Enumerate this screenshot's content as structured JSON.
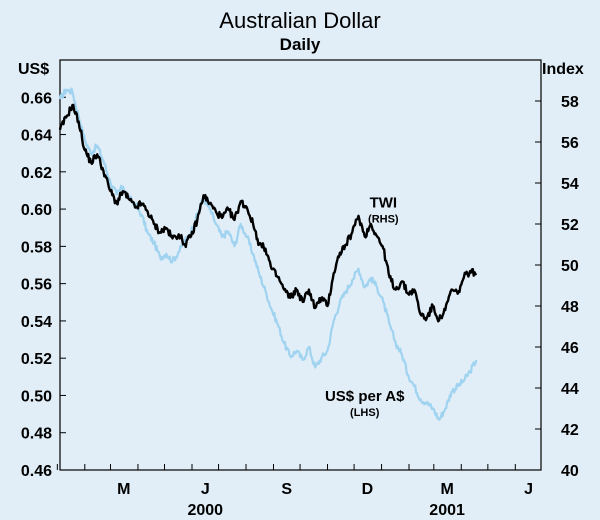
{
  "chart_data": {
    "type": "line",
    "title": "Australian Dollar",
    "subtitle": "Daily",
    "left_axis": {
      "unit": "US$",
      "min": 0.46,
      "max": 0.68,
      "ticks": [
        "0.46",
        "0.48",
        "0.50",
        "0.52",
        "0.54",
        "0.56",
        "0.58",
        "0.60",
        "0.62",
        "0.64",
        "0.66"
      ]
    },
    "right_axis": {
      "unit": "Index",
      "min": 40,
      "max": 60,
      "ticks": [
        "40",
        "42",
        "44",
        "46",
        "48",
        "50",
        "52",
        "54",
        "56",
        "58"
      ]
    },
    "x_axis": {
      "month_labels": [
        "M",
        "J",
        "S",
        "D",
        "M",
        "J"
      ],
      "year_labels": [
        "2000",
        "2001"
      ]
    },
    "x_domain": [
      "2000-01-04",
      "2001-06-30"
    ],
    "grid": false,
    "legend": "inline labels",
    "series": [
      {
        "name": "TWI",
        "name_sub": "(RHS)",
        "axis": "right",
        "color": "#000000",
        "points": [
          [
            "2000-01-04",
            56.6
          ],
          [
            "2000-01-11",
            57.2
          ],
          [
            "2000-01-18",
            57.8
          ],
          [
            "2000-01-25",
            57.0
          ],
          [
            "2000-02-01",
            55.6
          ],
          [
            "2000-02-08",
            55.0
          ],
          [
            "2000-02-15",
            55.4
          ],
          [
            "2000-02-22",
            54.6
          ],
          [
            "2000-03-01",
            53.6
          ],
          [
            "2000-03-08",
            53.0
          ],
          [
            "2000-03-15",
            53.6
          ],
          [
            "2000-03-22",
            53.2
          ],
          [
            "2000-03-29",
            52.8
          ],
          [
            "2000-04-05",
            53.0
          ],
          [
            "2000-04-12",
            52.6
          ],
          [
            "2000-04-19",
            52.0
          ],
          [
            "2000-04-26",
            51.6
          ],
          [
            "2000-05-03",
            51.8
          ],
          [
            "2000-05-10",
            51.3
          ],
          [
            "2000-05-17",
            51.5
          ],
          [
            "2000-05-24",
            51.0
          ],
          [
            "2000-05-31",
            51.4
          ],
          [
            "2000-06-07",
            52.2
          ],
          [
            "2000-06-14",
            53.4
          ],
          [
            "2000-06-21",
            53.0
          ],
          [
            "2000-06-28",
            52.6
          ],
          [
            "2000-07-05",
            52.3
          ],
          [
            "2000-07-12",
            52.7
          ],
          [
            "2000-07-19",
            52.2
          ],
          [
            "2000-07-26",
            53.1
          ],
          [
            "2000-08-02",
            52.8
          ],
          [
            "2000-08-09",
            52.0
          ],
          [
            "2000-08-16",
            51.0
          ],
          [
            "2000-08-23",
            50.8
          ],
          [
            "2000-08-30",
            49.8
          ],
          [
            "2000-09-06",
            49.4
          ],
          [
            "2000-09-13",
            48.8
          ],
          [
            "2000-09-20",
            48.4
          ],
          [
            "2000-09-27",
            48.8
          ],
          [
            "2000-10-04",
            48.2
          ],
          [
            "2000-10-11",
            48.8
          ],
          [
            "2000-10-18",
            47.9
          ],
          [
            "2000-10-25",
            48.4
          ],
          [
            "2000-11-01",
            48.0
          ],
          [
            "2000-11-08",
            49.6
          ],
          [
            "2000-11-15",
            50.6
          ],
          [
            "2000-11-22",
            51.0
          ],
          [
            "2000-11-29",
            51.6
          ],
          [
            "2000-12-06",
            52.4
          ],
          [
            "2000-12-13",
            51.4
          ],
          [
            "2000-12-20",
            52.0
          ],
          [
            "2000-12-27",
            51.4
          ],
          [
            "2001-01-03",
            50.8
          ],
          [
            "2001-01-10",
            49.4
          ],
          [
            "2001-01-17",
            48.8
          ],
          [
            "2001-01-24",
            49.2
          ],
          [
            "2001-01-31",
            48.6
          ],
          [
            "2001-02-07",
            48.8
          ],
          [
            "2001-02-14",
            47.6
          ],
          [
            "2001-02-21",
            47.4
          ],
          [
            "2001-02-28",
            48.0
          ],
          [
            "2001-03-07",
            47.3
          ],
          [
            "2001-03-14",
            47.8
          ],
          [
            "2001-03-21",
            48.8
          ],
          [
            "2001-03-28",
            48.6
          ],
          [
            "2001-04-04",
            49.4
          ],
          [
            "2001-04-11",
            49.7
          ],
          [
            "2001-04-18",
            49.6
          ]
        ]
      },
      {
        "name": "US$ per A$",
        "name_sub": "(LHS)",
        "axis": "left",
        "color": "#9fd3f0",
        "points": [
          [
            "2000-01-04",
            0.659
          ],
          [
            "2000-01-11",
            0.664
          ],
          [
            "2000-01-18",
            0.663
          ],
          [
            "2000-01-25",
            0.65
          ],
          [
            "2000-02-01",
            0.637
          ],
          [
            "2000-02-08",
            0.63
          ],
          [
            "2000-02-15",
            0.634
          ],
          [
            "2000-02-22",
            0.626
          ],
          [
            "2000-03-01",
            0.614
          ],
          [
            "2000-03-08",
            0.608
          ],
          [
            "2000-03-15",
            0.612
          ],
          [
            "2000-03-22",
            0.606
          ],
          [
            "2000-03-29",
            0.602
          ],
          [
            "2000-04-05",
            0.597
          ],
          [
            "2000-04-12",
            0.587
          ],
          [
            "2000-04-19",
            0.582
          ],
          [
            "2000-04-26",
            0.574
          ],
          [
            "2000-05-03",
            0.576
          ],
          [
            "2000-05-10",
            0.572
          ],
          [
            "2000-05-17",
            0.577
          ],
          [
            "2000-05-24",
            0.583
          ],
          [
            "2000-05-31",
            0.588
          ],
          [
            "2000-06-07",
            0.597
          ],
          [
            "2000-06-14",
            0.606
          ],
          [
            "2000-06-21",
            0.6
          ],
          [
            "2000-06-28",
            0.592
          ],
          [
            "2000-07-05",
            0.585
          ],
          [
            "2000-07-12",
            0.588
          ],
          [
            "2000-07-19",
            0.58
          ],
          [
            "2000-07-26",
            0.592
          ],
          [
            "2000-08-02",
            0.585
          ],
          [
            "2000-08-09",
            0.576
          ],
          [
            "2000-08-16",
            0.565
          ],
          [
            "2000-08-23",
            0.556
          ],
          [
            "2000-08-30",
            0.546
          ],
          [
            "2000-09-06",
            0.538
          ],
          [
            "2000-09-13",
            0.528
          ],
          [
            "2000-09-20",
            0.521
          ],
          [
            "2000-09-27",
            0.524
          ],
          [
            "2000-10-04",
            0.519
          ],
          [
            "2000-10-11",
            0.526
          ],
          [
            "2000-10-18",
            0.515
          ],
          [
            "2000-10-25",
            0.52
          ],
          [
            "2000-11-01",
            0.524
          ],
          [
            "2000-11-08",
            0.54
          ],
          [
            "2000-11-15",
            0.55
          ],
          [
            "2000-11-22",
            0.556
          ],
          [
            "2000-11-29",
            0.562
          ],
          [
            "2000-12-06",
            0.568
          ],
          [
            "2000-12-13",
            0.558
          ],
          [
            "2000-12-20",
            0.563
          ],
          [
            "2000-12-27",
            0.558
          ],
          [
            "2001-01-03",
            0.55
          ],
          [
            "2001-01-10",
            0.538
          ],
          [
            "2001-01-17",
            0.528
          ],
          [
            "2001-01-24",
            0.522
          ],
          [
            "2001-01-31",
            0.511
          ],
          [
            "2001-02-07",
            0.505
          ],
          [
            "2001-02-14",
            0.498
          ],
          [
            "2001-02-21",
            0.496
          ],
          [
            "2001-02-28",
            0.493
          ],
          [
            "2001-03-07",
            0.487
          ],
          [
            "2001-03-14",
            0.493
          ],
          [
            "2001-03-21",
            0.502
          ],
          [
            "2001-03-28",
            0.505
          ],
          [
            "2001-04-04",
            0.508
          ],
          [
            "2001-04-11",
            0.513
          ],
          [
            "2001-04-18",
            0.519
          ]
        ]
      }
    ],
    "label_anchor_dates": {
      "TWI": "2001-01-03",
      "US$ per A$": "2000-12-13"
    },
    "month_tick_dates": [
      "2000-01-01",
      "2000-02-01",
      "2000-03-01",
      "2000-04-01",
      "2000-05-01",
      "2000-06-01",
      "2000-07-01",
      "2000-08-01",
      "2000-09-01",
      "2000-10-01",
      "2000-11-01",
      "2000-12-01",
      "2001-01-01",
      "2001-02-01",
      "2001-03-01",
      "2001-04-01",
      "2001-05-01",
      "2001-06-01"
    ],
    "month_label_dates": [
      "2000-03-16",
      "2000-06-16",
      "2000-09-16",
      "2000-12-16",
      "2001-03-16",
      "2001-06-16"
    ],
    "year_label_dates": [
      "2000-06-16",
      "2001-03-16"
    ]
  }
}
